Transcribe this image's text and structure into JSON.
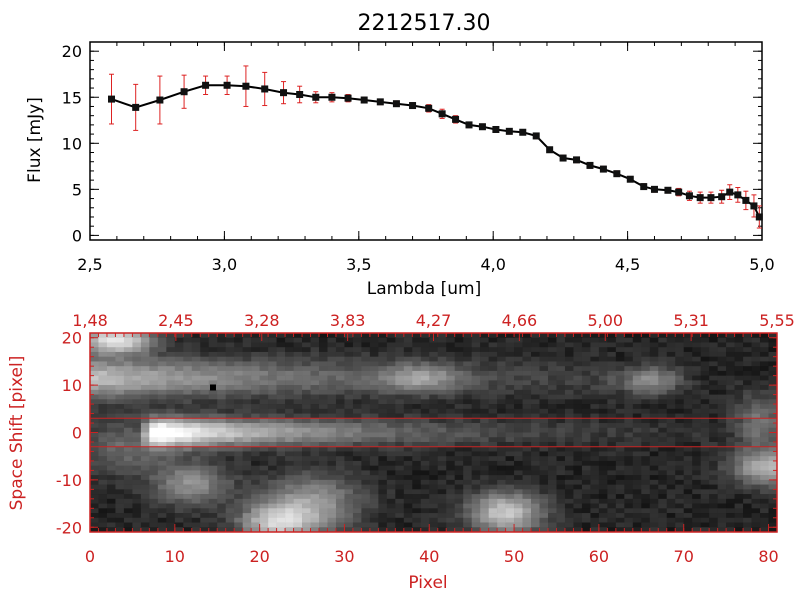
{
  "colors": {
    "axis_black": "#000000",
    "accent_red": "#cc2222",
    "line_black": "#000000",
    "errorbar_red": "#dd2222",
    "background": "#ffffff"
  },
  "chart_data": [
    {
      "type": "line",
      "title": "2212517.30",
      "xlabel": "Lambda [um]",
      "ylabel": "Flux [mJy]",
      "xlim": [
        2.5,
        5.0
      ],
      "ylim": [
        -0.5,
        21
      ],
      "xticks": [
        "2.5",
        "3.0",
        "3.5",
        "4.0",
        "4.5",
        "5.0"
      ],
      "yticks": [
        "0",
        "5",
        "10",
        "15",
        "20"
      ],
      "series": [
        {
          "x": [
            2.58,
            2.67,
            2.76,
            2.85,
            2.93,
            3.01,
            3.08,
            3.15,
            3.22,
            3.28,
            3.34,
            3.4,
            3.46,
            3.52,
            3.58,
            3.64,
            3.7,
            3.76,
            3.81,
            3.86,
            3.91,
            3.96,
            4.01,
            4.06,
            4.11,
            4.16,
            4.21,
            4.26,
            4.31,
            4.36,
            4.41,
            4.46,
            4.51,
            4.56,
            4.6,
            4.65,
            4.69,
            4.73,
            4.77,
            4.81,
            4.85,
            4.88,
            4.91,
            4.94,
            4.97,
            4.99
          ],
          "y": [
            14.8,
            13.9,
            14.7,
            15.6,
            16.3,
            16.3,
            16.2,
            15.9,
            15.5,
            15.3,
            15.0,
            15.0,
            14.9,
            14.7,
            14.5,
            14.3,
            14.1,
            13.8,
            13.2,
            12.6,
            12.0,
            11.8,
            11.5,
            11.3,
            11.2,
            10.8,
            9.3,
            8.4,
            8.2,
            7.6,
            7.2,
            6.7,
            6.1,
            5.3,
            5.0,
            4.9,
            4.7,
            4.3,
            4.1,
            4.1,
            4.2,
            4.7,
            4.4,
            3.8,
            3.2,
            2.0
          ],
          "yerr": [
            2.7,
            2.5,
            2.6,
            1.8,
            1.0,
            1.0,
            2.2,
            1.8,
            1.2,
            0.9,
            0.6,
            0.5,
            0.4,
            0.3,
            0.3,
            0.3,
            0.3,
            0.4,
            0.5,
            0.4,
            0.3,
            0.3,
            0.3,
            0.3,
            0.3,
            0.3,
            0.3,
            0.3,
            0.3,
            0.3,
            0.3,
            0.3,
            0.3,
            0.3,
            0.3,
            0.3,
            0.4,
            0.5,
            0.6,
            0.6,
            0.7,
            0.8,
            0.8,
            1.0,
            1.2,
            1.2
          ]
        }
      ]
    },
    {
      "type": "heatmap",
      "xlabel": "Pixel",
      "ylabel": "Space Shift [pixel]",
      "xlim": [
        0,
        81
      ],
      "ylim": [
        -21,
        21
      ],
      "xticks": [
        "0",
        "10",
        "20",
        "30",
        "40",
        "50",
        "60",
        "70",
        "80"
      ],
      "yticks": [
        "-20",
        "-10",
        "0",
        "10",
        "20"
      ],
      "top_axis_labels": [
        "1.48",
        "2.45",
        "3.28",
        "3.83",
        "4.27",
        "4.66",
        "5.00",
        "5.31",
        "5.55"
      ],
      "extraction_window": [
        -3,
        3
      ],
      "colormap": "grayscale",
      "grid_cols": 81,
      "grid_rows": 42,
      "sources": [
        {
          "x0": 8,
          "x1": 75,
          "y": 0,
          "sigma_y": 2.0,
          "peak": 1.0,
          "decay": 0.052
        },
        {
          "x0": 0,
          "x1": 62,
          "y": 11.5,
          "sigma_y": 2.8,
          "peak": 0.62,
          "decay": 0.035
        },
        {
          "x": 3,
          "y": 19.5,
          "sigma_x": 3,
          "sigma_y": 2,
          "peak": 0.8
        },
        {
          "x": 12,
          "y": -11,
          "sigma_x": 3,
          "sigma_y": 3,
          "peak": 0.4
        },
        {
          "x": 26,
          "y": -15,
          "sigma_x": 4,
          "sigma_y": 4,
          "peak": 0.45
        },
        {
          "x": 22,
          "y": -19,
          "sigma_x": 3,
          "sigma_y": 2.5,
          "peak": 0.6
        },
        {
          "x": 49,
          "y": -17,
          "sigma_x": 3,
          "sigma_y": 3,
          "peak": 0.65
        },
        {
          "x": 39,
          "y": 11.5,
          "sigma_x": 3,
          "sigma_y": 2,
          "peak": 0.35
        },
        {
          "x": 66,
          "y": 11,
          "sigma_x": 2.5,
          "sigma_y": 2,
          "peak": 0.4
        },
        {
          "x": 80,
          "y": -7.5,
          "sigma_x": 3,
          "sigma_y": 2.5,
          "peak": 0.55
        },
        {
          "x": 79,
          "y": 2,
          "sigma_x": 2,
          "sigma_y": 4,
          "peak": 0.3
        },
        {
          "x": 5,
          "y": -3,
          "sigma_x": 4,
          "sigma_y": 4,
          "peak": 0.25
        }
      ],
      "bad_pixel": {
        "x": 14.5,
        "y": 9.5
      }
    }
  ]
}
